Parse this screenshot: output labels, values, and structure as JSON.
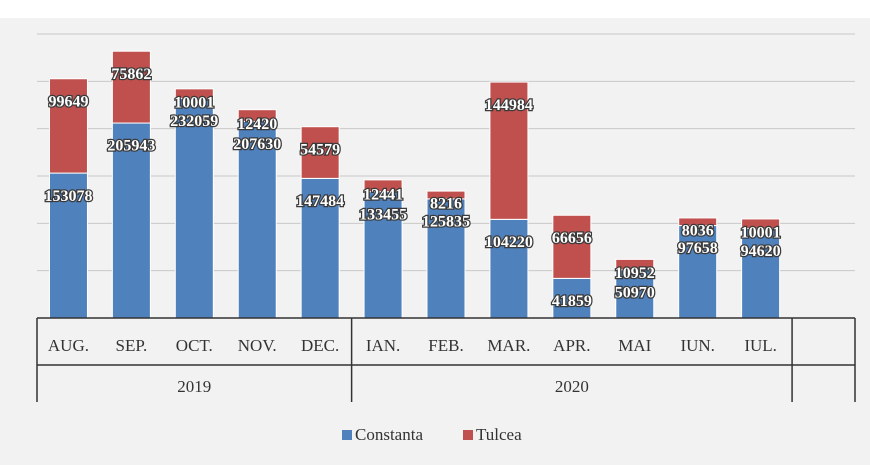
{
  "chart_data": {
    "type": "stacked-bar",
    "categories": [
      "AUG.",
      "SEP.",
      "OCT.",
      "NOV.",
      "DEC.",
      "IAN.",
      "FEB.",
      "MAR.",
      "APR.",
      "MAI",
      "IUN.",
      "IUL.",
      null
    ],
    "groups": [
      {
        "label": "2019",
        "count": 5
      },
      {
        "label": "2020",
        "count": 7
      }
    ],
    "series": [
      {
        "name": "Constanta",
        "color": "#4f81bd",
        "values": [
          153078,
          205943,
          232059,
          207630,
          147484,
          133455,
          125835,
          104220,
          41859,
          50970,
          97658,
          94620,
          null
        ]
      },
      {
        "name": "Tulcea",
        "color": "#c0504d",
        "values": [
          99649,
          75862,
          10001,
          12420,
          54579,
          12441,
          8216,
          144984,
          66656,
          10952,
          8036,
          10001,
          null
        ]
      }
    ],
    "ylim": [
      0,
      300000
    ],
    "yticks": [
      0,
      50000,
      100000,
      150000,
      200000,
      250000,
      300000
    ],
    "grid": true,
    "legend": "bottom"
  }
}
